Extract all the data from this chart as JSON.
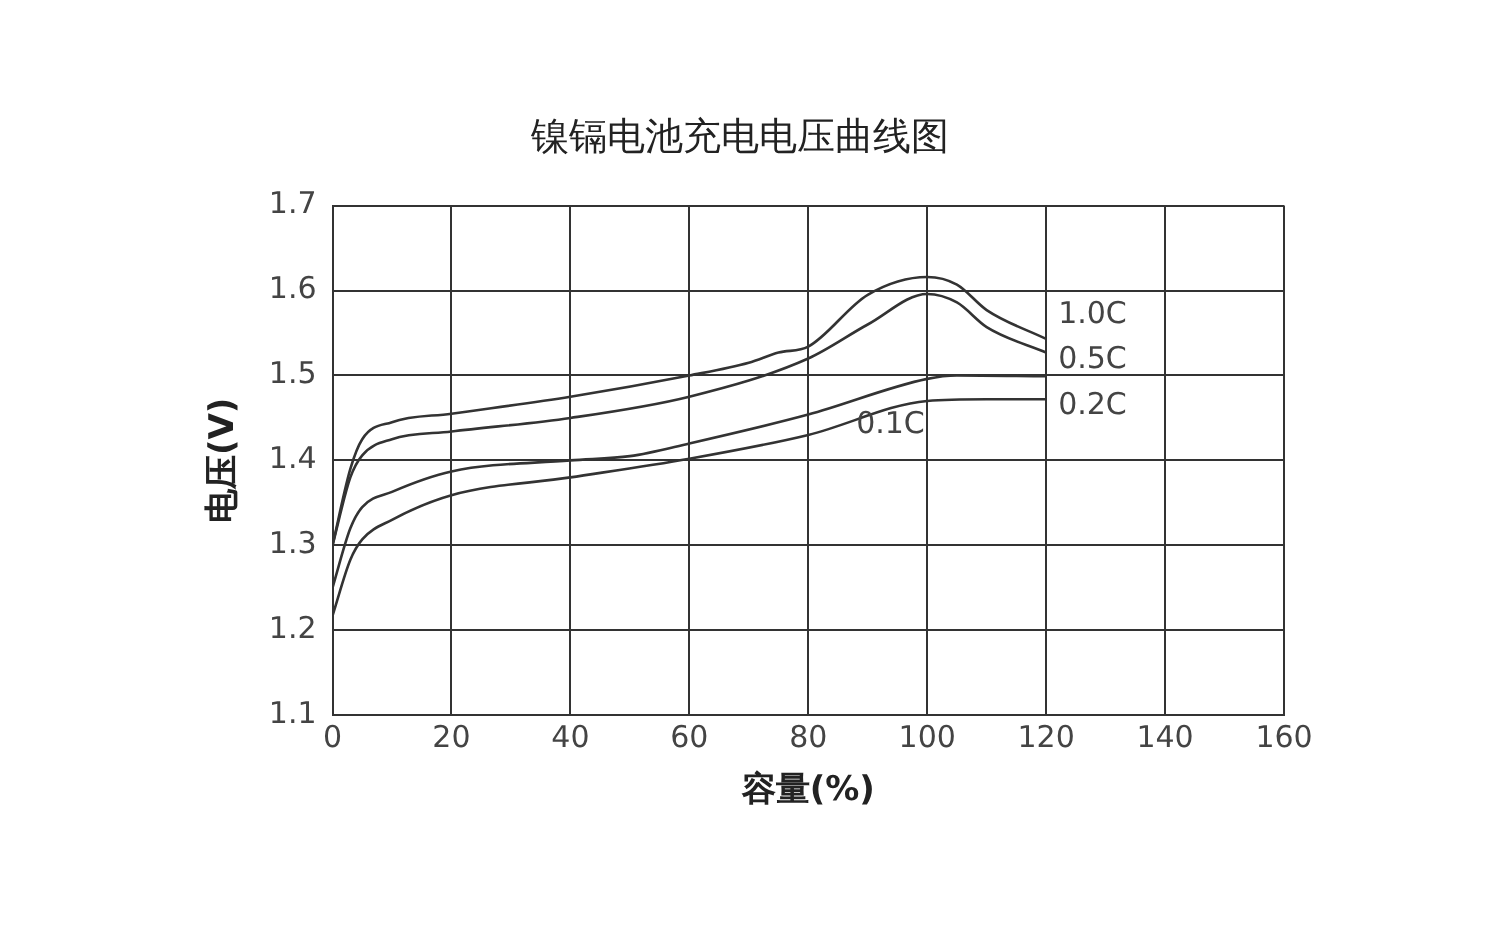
{
  "chart_data": {
    "type": "line",
    "title": "镍镉电池充电电压曲线图",
    "xlabel": "容量(%)",
    "ylabel": "电压(V)",
    "xlim": [
      0,
      160
    ],
    "xticks": [
      0,
      20,
      40,
      60,
      80,
      100,
      120,
      140,
      160
    ],
    "ylim": [
      1.1,
      1.7
    ],
    "yticks": [
      1.1,
      1.2,
      1.3,
      1.4,
      1.5,
      1.6,
      1.7
    ],
    "grid": true,
    "legend": false,
    "marker": "none",
    "line_style": "solid",
    "series": [
      {
        "name": "1.0C",
        "color": "#333333",
        "x": [
          0,
          3,
          5,
          10,
          20,
          40,
          60,
          70,
          75,
          80,
          90,
          100,
          105,
          110,
          120
        ],
        "values": [
          1.3,
          1.39,
          1.425,
          1.445,
          1.455,
          1.475,
          1.5,
          1.515,
          1.527,
          1.534,
          1.595,
          1.616,
          1.607,
          1.577,
          1.543
        ]
      },
      {
        "name": "0.5C",
        "color": "#333333",
        "x": [
          0,
          3,
          5,
          10,
          20,
          40,
          60,
          80,
          90,
          100,
          105,
          110,
          120
        ],
        "values": [
          1.3,
          1.38,
          1.406,
          1.425,
          1.434,
          1.45,
          1.475,
          1.52,
          1.56,
          1.596,
          1.586,
          1.557,
          1.527
        ]
      },
      {
        "name": "0.2C",
        "color": "#333333",
        "x": [
          0,
          3,
          5,
          10,
          20,
          40,
          50,
          60,
          80,
          100,
          105,
          120
        ],
        "values": [
          1.25,
          1.32,
          1.345,
          1.363,
          1.387,
          1.4,
          1.405,
          1.42,
          1.454,
          1.496,
          1.5,
          1.499
        ]
      },
      {
        "name": "0.1C",
        "color": "#333333",
        "x": [
          0,
          3,
          5,
          10,
          20,
          40,
          60,
          80,
          100,
          110,
          120
        ],
        "values": [
          1.217,
          1.283,
          1.307,
          1.33,
          1.359,
          1.38,
          1.402,
          1.43,
          1.47,
          1.472,
          1.472
        ]
      }
    ]
  }
}
